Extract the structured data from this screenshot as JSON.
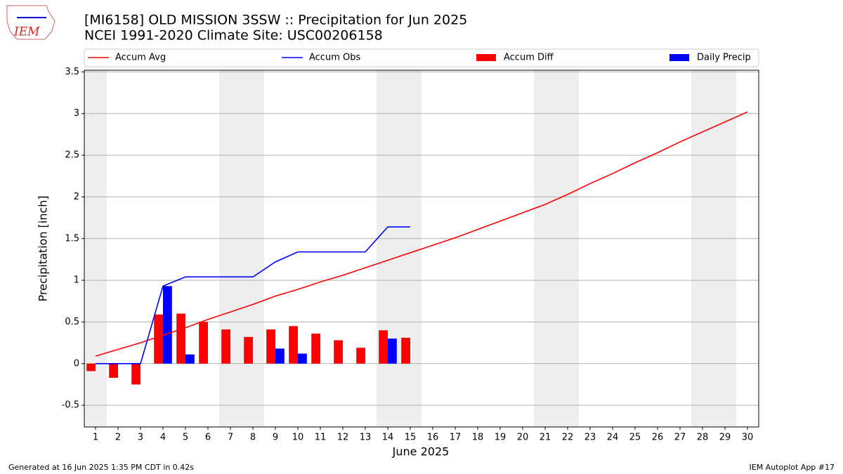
{
  "chart_data": {
    "type": "bar",
    "logo": "IEM",
    "title": "[MI6158] OLD MISSION 3SSW :: Precipitation for Jun 2025",
    "subtitle": "NCEI 1991-2020 Climate Site: USC00206158",
    "xlabel": "June 2025",
    "ylabel": "Precipitation [inch]",
    "footer_left": "Generated at 16 Jun 2025 1:35 PM CDT in 0.42s",
    "footer_right": "IEM Autoplot App #17",
    "x": [
      1,
      2,
      3,
      4,
      5,
      6,
      7,
      8,
      9,
      10,
      11,
      12,
      13,
      14,
      15,
      16,
      17,
      18,
      19,
      20,
      21,
      22,
      23,
      24,
      25,
      26,
      27,
      28,
      29,
      30
    ],
    "xlim": [
      0.5,
      30.5
    ],
    "xticks": [
      1,
      2,
      3,
      4,
      5,
      6,
      7,
      8,
      9,
      10,
      11,
      12,
      13,
      14,
      15,
      16,
      17,
      18,
      19,
      20,
      21,
      22,
      23,
      24,
      25,
      26,
      27,
      28,
      29,
      30
    ],
    "ylim": [
      -0.76,
      3.52
    ],
    "yticks": [
      -0.5,
      0.0,
      0.5,
      1.0,
      1.5,
      2.0,
      2.5,
      3.0,
      3.5
    ],
    "grid": true,
    "legend": "top",
    "series": [
      {
        "name": "Accum Avg",
        "type": "line",
        "color": "#ff0000",
        "values": [
          0.09,
          0.17,
          0.25,
          0.34,
          0.43,
          0.53,
          0.62,
          0.71,
          0.81,
          0.89,
          0.98,
          1.06,
          1.15,
          1.24,
          1.33,
          1.42,
          1.51,
          1.61,
          1.71,
          1.81,
          1.91,
          2.03,
          2.16,
          2.28,
          2.41,
          2.53,
          2.66,
          2.78,
          2.9,
          3.02
        ]
      },
      {
        "name": "Accum Obs",
        "type": "line",
        "color": "#0000ff",
        "values": [
          0,
          0,
          0,
          0.93,
          1.04,
          1.04,
          1.04,
          1.04,
          1.22,
          1.34,
          1.34,
          1.34,
          1.34,
          1.64,
          1.64,
          null,
          null,
          null,
          null,
          null,
          null,
          null,
          null,
          null,
          null,
          null,
          null,
          null,
          null,
          null
        ]
      },
      {
        "name": "Accum Diff",
        "type": "bar",
        "color": "#ff0000",
        "offset": "left",
        "values": [
          -0.09,
          -0.17,
          -0.25,
          0.59,
          0.6,
          0.5,
          0.41,
          0.32,
          0.41,
          0.45,
          0.36,
          0.28,
          0.19,
          0.4,
          0.31,
          null,
          null,
          null,
          null,
          null,
          null,
          null,
          null,
          null,
          null,
          null,
          null,
          null,
          null,
          null
        ]
      },
      {
        "name": "Daily Precip",
        "type": "bar",
        "color": "#0000ff",
        "offset": "right",
        "values": [
          0,
          0,
          0,
          0.93,
          0.11,
          0,
          0,
          0,
          0.18,
          0.12,
          0,
          0,
          0,
          0.3,
          0,
          null,
          null,
          null,
          null,
          null,
          null,
          null,
          null,
          null,
          null,
          null,
          null,
          null,
          null,
          null
        ]
      }
    ]
  }
}
